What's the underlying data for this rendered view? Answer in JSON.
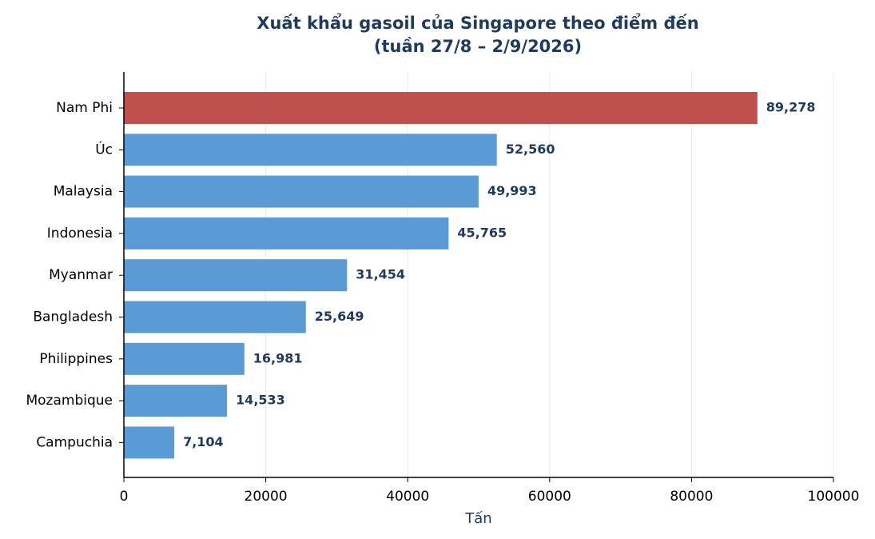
{
  "chart_data": {
    "type": "barh",
    "title": [
      "Xuất khẩu gasoil của Singapore theo điểm đến",
      "(tuần 27/8 – 2/9/2026)"
    ],
    "x_label": "Tấn",
    "categories": [
      "Nam Phi",
      "Úc",
      "Malaysia",
      "Indonesia",
      "Myanmar",
      "Bangladesh",
      "Philippines",
      "Mozambique",
      "Campuchia"
    ],
    "values": [
      89278,
      52560,
      49993,
      45765,
      31454,
      25649,
      16981,
      14533,
      7104
    ],
    "value_labels": [
      "89,278",
      "52,560",
      "49,993",
      "45,765",
      "31,454",
      "25,649",
      "16,981",
      "14,533",
      "7,104"
    ],
    "colors": [
      "#c0504d",
      "#5b9bd5",
      "#5b9bd5",
      "#5b9bd5",
      "#5b9bd5",
      "#5b9bd5",
      "#5b9bd5",
      "#5b9bd5",
      "#5b9bd5"
    ],
    "xlim": [
      0,
      100000
    ],
    "xticks": [
      0,
      20000,
      40000,
      60000,
      80000,
      100000
    ],
    "grid": true
  }
}
